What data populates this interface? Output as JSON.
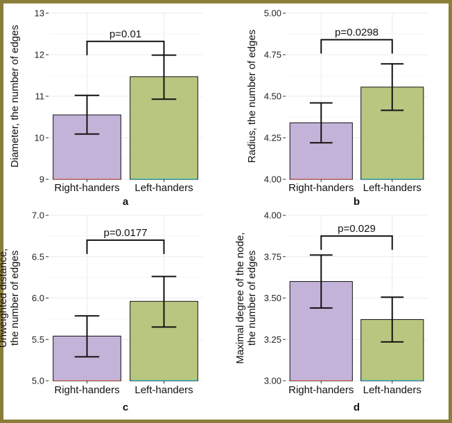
{
  "colors": {
    "frame": "#8b7d3a",
    "grid": "#ebebeb",
    "bar_right": "#c4b3d9",
    "bar_left": "#b8c680",
    "underline_right": "#e86a6a",
    "underline_left": "#22b8c0"
  },
  "chart_data": [
    {
      "type": "bar",
      "panel": "a",
      "categories": [
        "Right-handers",
        "Left-handers"
      ],
      "values": [
        10.55,
        11.47
      ],
      "error_low": [
        10.09,
        10.93
      ],
      "error_high": [
        11.02,
        11.99
      ],
      "ylabel_lines": [
        "Diameter, the number of edges"
      ],
      "ylim": [
        9,
        13
      ],
      "yticks": [
        9,
        10,
        11,
        12,
        13
      ],
      "ytick_labels": [
        "9",
        "10",
        "11",
        "12",
        "13"
      ],
      "annotation": "p=0.01",
      "bracket_y": 12.32,
      "grid": true
    },
    {
      "type": "bar",
      "panel": "b",
      "categories": [
        "Right-handers",
        "Left-handers"
      ],
      "values": [
        4.34,
        4.555
      ],
      "error_low": [
        4.22,
        4.415
      ],
      "error_high": [
        4.46,
        4.695
      ],
      "ylabel_lines": [
        "Radius, the number of edges"
      ],
      "ylim": [
        4.0,
        5.0
      ],
      "yticks": [
        4.0,
        4.25,
        4.5,
        4.75,
        5.0
      ],
      "ytick_labels": [
        "4.00",
        "4.25",
        "4.50",
        "4.75",
        "5.00"
      ],
      "annotation": "p=0.0298",
      "bracket_y": 4.84,
      "grid": true
    },
    {
      "type": "bar",
      "panel": "c",
      "categories": [
        "Right-handers",
        "Left-handers"
      ],
      "values": [
        5.54,
        5.96
      ],
      "error_low": [
        5.29,
        5.65
      ],
      "error_high": [
        5.785,
        6.26
      ],
      "ylabel_lines": [
        "Unweighted distance,",
        "the number of edges"
      ],
      "ylim": [
        5.0,
        7.0
      ],
      "yticks": [
        5.0,
        5.5,
        6.0,
        6.5,
        7.0
      ],
      "ytick_labels": [
        "5.0",
        "5.5",
        "6.0",
        "6.5",
        "7.0"
      ],
      "annotation": "p=0.0177",
      "bracket_y": 6.7,
      "grid": true
    },
    {
      "type": "bar",
      "panel": "d",
      "categories": [
        "Right-handers",
        "Left-handers"
      ],
      "values": [
        3.6,
        3.37
      ],
      "error_low": [
        3.44,
        3.235
      ],
      "error_high": [
        3.76,
        3.505
      ],
      "ylabel_lines": [
        "Maximal degree of the node,",
        "the number of edges"
      ],
      "ylim": [
        3.0,
        4.0
      ],
      "yticks": [
        3.0,
        3.25,
        3.5,
        3.75,
        4.0
      ],
      "ytick_labels": [
        "3.00",
        "3.25",
        "3.50",
        "3.75",
        "4.00"
      ],
      "annotation": "p=0.029",
      "bracket_y": 3.875,
      "grid": true
    }
  ]
}
